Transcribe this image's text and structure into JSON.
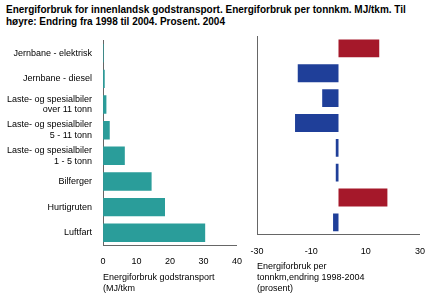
{
  "chart_data": [
    {
      "type": "bar",
      "title": "Energiforbruk for innenlandsk godstransport. Energiforbruk per tonnkm. MJ/tkm. Til høyre: Endring fra 1998 til 2004. Prosent. 2004",
      "orientation": "horizontal",
      "categories": [
        "Jernbane - elektrisk",
        "Jernbane - diesel",
        "Laste- og spesialbiler over 11 tonn",
        "Laste- og spesialbiler 5 - 11 tonn",
        "Laste- og spesialbiler 1 - 5 tonn",
        "Bilferger",
        "Hurtigruten",
        "Luftfart"
      ],
      "values": [
        0.2,
        0.5,
        1,
        2,
        6.5,
        14.5,
        18.5,
        30.5
      ],
      "color": "#2a9d9a",
      "x_label": "Energiforbruk godstransport (MJ/tkm",
      "xlim": [
        0,
        40
      ],
      "xticks": [
        0,
        10,
        20,
        30,
        40
      ],
      "grid": false
    },
    {
      "type": "bar",
      "orientation": "horizontal",
      "categories": [
        "Jernbane - elektrisk",
        "Jernbane - diesel",
        "Laste- og spesialbiler over 11 tonn",
        "Laste- og spesialbiler 5 - 11 tonn",
        "Laste- og spesialbiler 1 - 5 tonn",
        "Bilferger",
        "Hurtigruten",
        "Luftfart"
      ],
      "values": [
        15,
        -15,
        -6,
        -16,
        -1,
        -1,
        18,
        -2
      ],
      "colors": [
        "#a5182a",
        "#1f3f99",
        "#1f3f99",
        "#1f3f99",
        "#1f3f99",
        "#1f3f99",
        "#a5182a",
        "#1f3f99"
      ],
      "x_label": "Energiforbruk per tonnkm,endring 1998-2004 (prosent)",
      "xlim": [
        -30,
        30
      ],
      "xticks": [
        -30,
        -10,
        10,
        30
      ],
      "tick_labels": "x",
      "grid": false
    }
  ]
}
